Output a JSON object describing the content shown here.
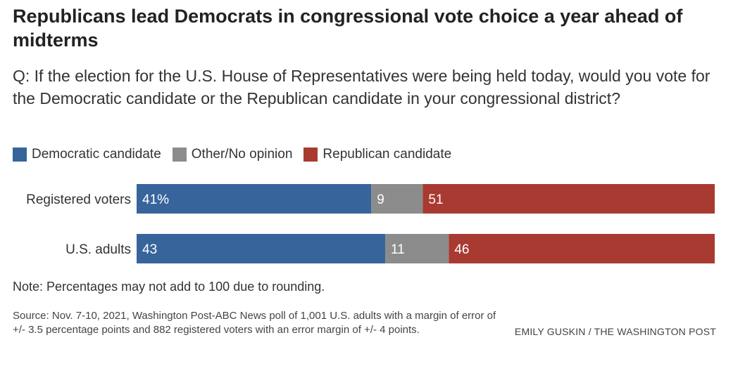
{
  "title": "Republicans lead Democrats in congressional vote choice a year ahead of midterms",
  "question": "Q: If the election for the U.S. House of Representatives were being held today, would you vote for the Democratic candidate or the Republican candidate in your congressional district?",
  "legend": [
    {
      "label": "Democratic candidate",
      "color": "#37649b"
    },
    {
      "label": "Other/No opinion",
      "color": "#8c8c8c"
    },
    {
      "label": "Republican candidate",
      "color": "#a83a32"
    }
  ],
  "chart_data": {
    "type": "bar",
    "orientation": "horizontal",
    "stacked": true,
    "categories": [
      "Registered voters",
      "U.S. adults"
    ],
    "series": [
      {
        "name": "Democratic candidate",
        "color": "#37649b",
        "values": [
          41,
          43
        ],
        "labels": [
          "41%",
          "43"
        ]
      },
      {
        "name": "Other/No opinion",
        "color": "#8c8c8c",
        "values": [
          9,
          11
        ],
        "labels": [
          "9",
          "11"
        ]
      },
      {
        "name": "Republican candidate",
        "color": "#a83a32",
        "values": [
          51,
          46
        ],
        "labels": [
          "51",
          "46"
        ]
      }
    ],
    "grid": false,
    "legend_position": "top-left"
  },
  "note": "Note: Percentages may not add to 100 due to rounding.",
  "source": "Source: Nov. 7-10, 2021, Washington Post-ABC News poll of 1,001 U.S. adults with a margin of error of +/- 3.5 percentage points and 882 registered voters with an error margin of +/- 4 points.",
  "credit": "EMILY GUSKIN / THE WASHINGTON POST"
}
